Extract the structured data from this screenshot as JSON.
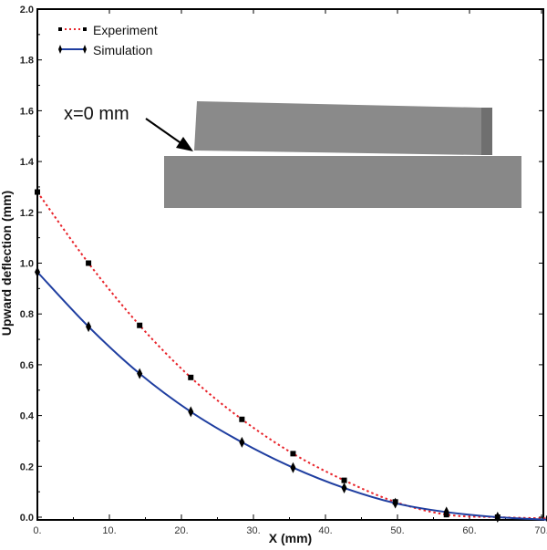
{
  "chart_data": {
    "type": "line",
    "title": "",
    "xlabel": "X (mm)",
    "ylabel": "Upward deflection (mm)",
    "xlim": [
      0,
      71
    ],
    "ylim": [
      -0.01,
      2.0
    ],
    "x_ticks": [
      "0.",
      "10.",
      "20.",
      "30.",
      "40.",
      "50.",
      "60.",
      "70."
    ],
    "y_ticks": [
      "0.0",
      "0.2",
      "0.4",
      "0.6",
      "0.8",
      "1.0",
      "1.2",
      "1.4",
      "1.6",
      "1.8",
      "2.0"
    ],
    "x": [
      0,
      7.1,
      14.2,
      21.3,
      28.4,
      35.5,
      42.6,
      49.7,
      56.8,
      63.9,
      71.0
    ],
    "series": [
      {
        "name": "Experiment",
        "color": "#e8232a",
        "style": "dotted",
        "marker": "square",
        "values": [
          1.28,
          1.0,
          0.755,
          0.55,
          0.385,
          0.25,
          0.145,
          0.06,
          0.01,
          0.0,
          -0.005
        ]
      },
      {
        "name": "Simulation",
        "color": "#1f3ea0",
        "style": "solid",
        "marker": "diamond",
        "values": [
          0.965,
          0.75,
          0.565,
          0.415,
          0.295,
          0.195,
          0.115,
          0.055,
          0.02,
          0.0,
          -0.01
        ]
      }
    ],
    "legend_position": "top-left",
    "grid": false,
    "annotation": "x=0 mm"
  }
}
